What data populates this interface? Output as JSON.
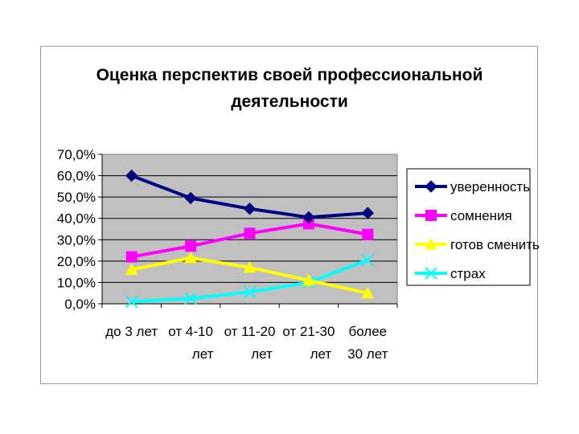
{
  "chart_data": {
    "type": "line",
    "title_lines": [
      "Оценка перспектив своей профессиональной",
      "деятельности"
    ],
    "categories": [
      [
        "до 3 лет"
      ],
      [
        "от 4-10",
        "лет"
      ],
      [
        "от 11-20",
        "лет"
      ],
      [
        "от 21-30",
        "лет"
      ],
      [
        "более",
        "30 лет"
      ]
    ],
    "ylim": [
      0,
      70
    ],
    "y_ticks": [
      "0,0%",
      "10,0%",
      "20,0%",
      "30,0%",
      "40,0%",
      "50,0%",
      "60,0%",
      "70,0%"
    ],
    "y_unit": "percent",
    "grid": true,
    "legend_position": "right",
    "plot_background": "#c0c0c0",
    "series": [
      {
        "name": "уверенность",
        "color": "#000080",
        "marker": "diamond",
        "values": [
          60,
          49.5,
          44.5,
          40.5,
          42.5
        ]
      },
      {
        "name": "сомнения",
        "color": "#ff00ff",
        "marker": "square",
        "values": [
          22,
          27,
          33,
          37.5,
          32.5
        ]
      },
      {
        "name": "готов сменить",
        "color": "#ffff00",
        "marker": "triangle",
        "values": [
          16,
          21.5,
          17,
          11,
          5
        ]
      },
      {
        "name": "страх",
        "color": "#00ffff",
        "marker": "x",
        "values": [
          1,
          2.5,
          5.5,
          10,
          20.5
        ]
      }
    ]
  }
}
